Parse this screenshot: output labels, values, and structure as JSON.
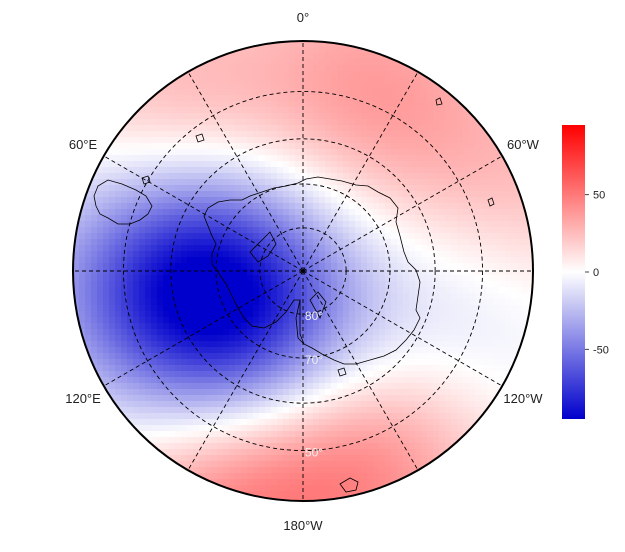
{
  "map": {
    "projection": "south-polar-stereographic",
    "field": "sea-level-pressure-anomaly-pattern",
    "lon_labels": [
      {
        "text": "0°",
        "lon": 0
      },
      {
        "text": "60°E",
        "lon": 60
      },
      {
        "text": "120°E",
        "lon": 120
      },
      {
        "text": "180°W",
        "lon": 180
      },
      {
        "text": "120°W",
        "lon": -120
      },
      {
        "text": "60°W",
        "lon": -60
      }
    ],
    "lat_labels": [
      {
        "text": "80°",
        "lat": -80
      },
      {
        "text": "70°",
        "lat": -70
      },
      {
        "text": "50°",
        "lat": -50
      }
    ],
    "graticule": {
      "lat_circles": [
        -80,
        -70,
        -60,
        -50
      ],
      "meridians": [
        0,
        30,
        60,
        90,
        120,
        150,
        180,
        210,
        240,
        270,
        300,
        330
      ],
      "style": "dashed"
    },
    "anomaly_centers": [
      {
        "lon": 120,
        "lat": -72,
        "value": -85
      },
      {
        "lon": 90,
        "lat": -58,
        "value": -45
      },
      {
        "lon": -100,
        "lat": -55,
        "value": -20
      },
      {
        "lon": -70,
        "lat": -40,
        "value": 25
      },
      {
        "lon": 160,
        "lat": -40,
        "value": 45
      },
      {
        "lon": -160,
        "lat": -45,
        "value": 40
      },
      {
        "lon": 40,
        "lat": -45,
        "value": 30
      },
      {
        "lon": -20,
        "lat": -45,
        "value": 30
      },
      {
        "lon": -40,
        "lat": -70,
        "value": 10
      }
    ],
    "colors": {
      "negative": "#0000cc",
      "zero": "#ffffff",
      "positive": "#ff0000",
      "coastline": "#000000"
    }
  },
  "colorbar": {
    "range": [
      -95,
      95
    ],
    "ticks": [
      {
        "value": 50,
        "label": "50"
      },
      {
        "value": 0,
        "label": "0"
      },
      {
        "value": -50,
        "label": "-50"
      }
    ]
  }
}
